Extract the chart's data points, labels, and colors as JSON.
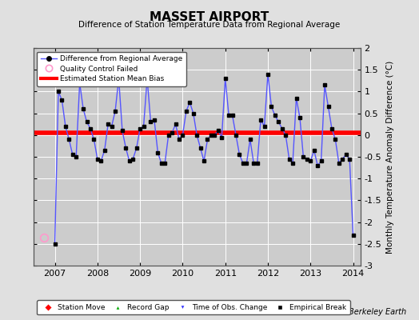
{
  "title": "MASSET AIRPORT",
  "subtitle": "Difference of Station Temperature Data from Regional Average",
  "ylabel": "Monthly Temperature Anomaly Difference (°C)",
  "bias": 0.05,
  "xlim": [
    2006.5,
    2014.17
  ],
  "ylim": [
    -3.0,
    2.0
  ],
  "yticks": [
    -3,
    -2.5,
    -2,
    -1.5,
    -1,
    -0.5,
    0,
    0.5,
    1,
    1.5,
    2
  ],
  "xticks": [
    2007,
    2008,
    2009,
    2010,
    2011,
    2012,
    2013,
    2014
  ],
  "background_color": "#e0e0e0",
  "plot_bg_color": "#cccccc",
  "grid_color": "#ffffff",
  "line_color": "#5555ff",
  "bias_color": "#ff0000",
  "qc_fail_x": 2006.75,
  "qc_fail_y": -2.35,
  "footnote": "Berkeley Earth",
  "data_x": [
    2007.0,
    2007.083,
    2007.167,
    2007.25,
    2007.333,
    2007.417,
    2007.5,
    2007.583,
    2007.667,
    2007.75,
    2007.833,
    2007.917,
    2008.0,
    2008.083,
    2008.167,
    2008.25,
    2008.333,
    2008.417,
    2008.5,
    2008.583,
    2008.667,
    2008.75,
    2008.833,
    2008.917,
    2009.0,
    2009.083,
    2009.167,
    2009.25,
    2009.333,
    2009.417,
    2009.5,
    2009.583,
    2009.667,
    2009.75,
    2009.833,
    2009.917,
    2010.0,
    2010.083,
    2010.167,
    2010.25,
    2010.333,
    2010.417,
    2010.5,
    2010.583,
    2010.667,
    2010.75,
    2010.833,
    2010.917,
    2011.0,
    2011.083,
    2011.167,
    2011.25,
    2011.333,
    2011.417,
    2011.5,
    2011.583,
    2011.667,
    2011.75,
    2011.833,
    2011.917,
    2012.0,
    2012.083,
    2012.167,
    2012.25,
    2012.333,
    2012.417,
    2012.5,
    2012.583,
    2012.667,
    2012.75,
    2012.833,
    2012.917,
    2013.0,
    2013.083,
    2013.167,
    2013.25,
    2013.333,
    2013.417,
    2013.5,
    2013.583,
    2013.667,
    2013.75,
    2013.833,
    2013.917,
    2014.0
  ],
  "data_y": [
    -2.5,
    1.0,
    0.8,
    0.2,
    -0.1,
    -0.45,
    -0.5,
    1.2,
    0.6,
    0.3,
    0.15,
    -0.1,
    -0.55,
    -0.6,
    -0.35,
    0.25,
    0.2,
    0.55,
    1.3,
    0.1,
    -0.3,
    -0.6,
    -0.55,
    -0.3,
    0.15,
    0.2,
    1.3,
    0.3,
    0.35,
    -0.4,
    -0.65,
    -0.65,
    0.0,
    0.05,
    0.25,
    -0.1,
    0.0,
    0.55,
    0.75,
    0.5,
    0.0,
    -0.3,
    -0.6,
    -0.1,
    0.0,
    0.0,
    0.1,
    -0.05,
    1.3,
    0.45,
    0.45,
    0.0,
    -0.45,
    -0.65,
    -0.65,
    -0.1,
    -0.65,
    -0.65,
    0.35,
    0.2,
    1.4,
    0.65,
    0.45,
    0.3,
    0.15,
    0.0,
    -0.55,
    -0.65,
    0.85,
    0.4,
    -0.5,
    -0.55,
    -0.6,
    -0.35,
    -0.7,
    -0.6,
    1.15,
    0.65,
    0.15,
    -0.1,
    -0.65,
    -0.55,
    -0.45,
    -0.55,
    -2.3
  ]
}
